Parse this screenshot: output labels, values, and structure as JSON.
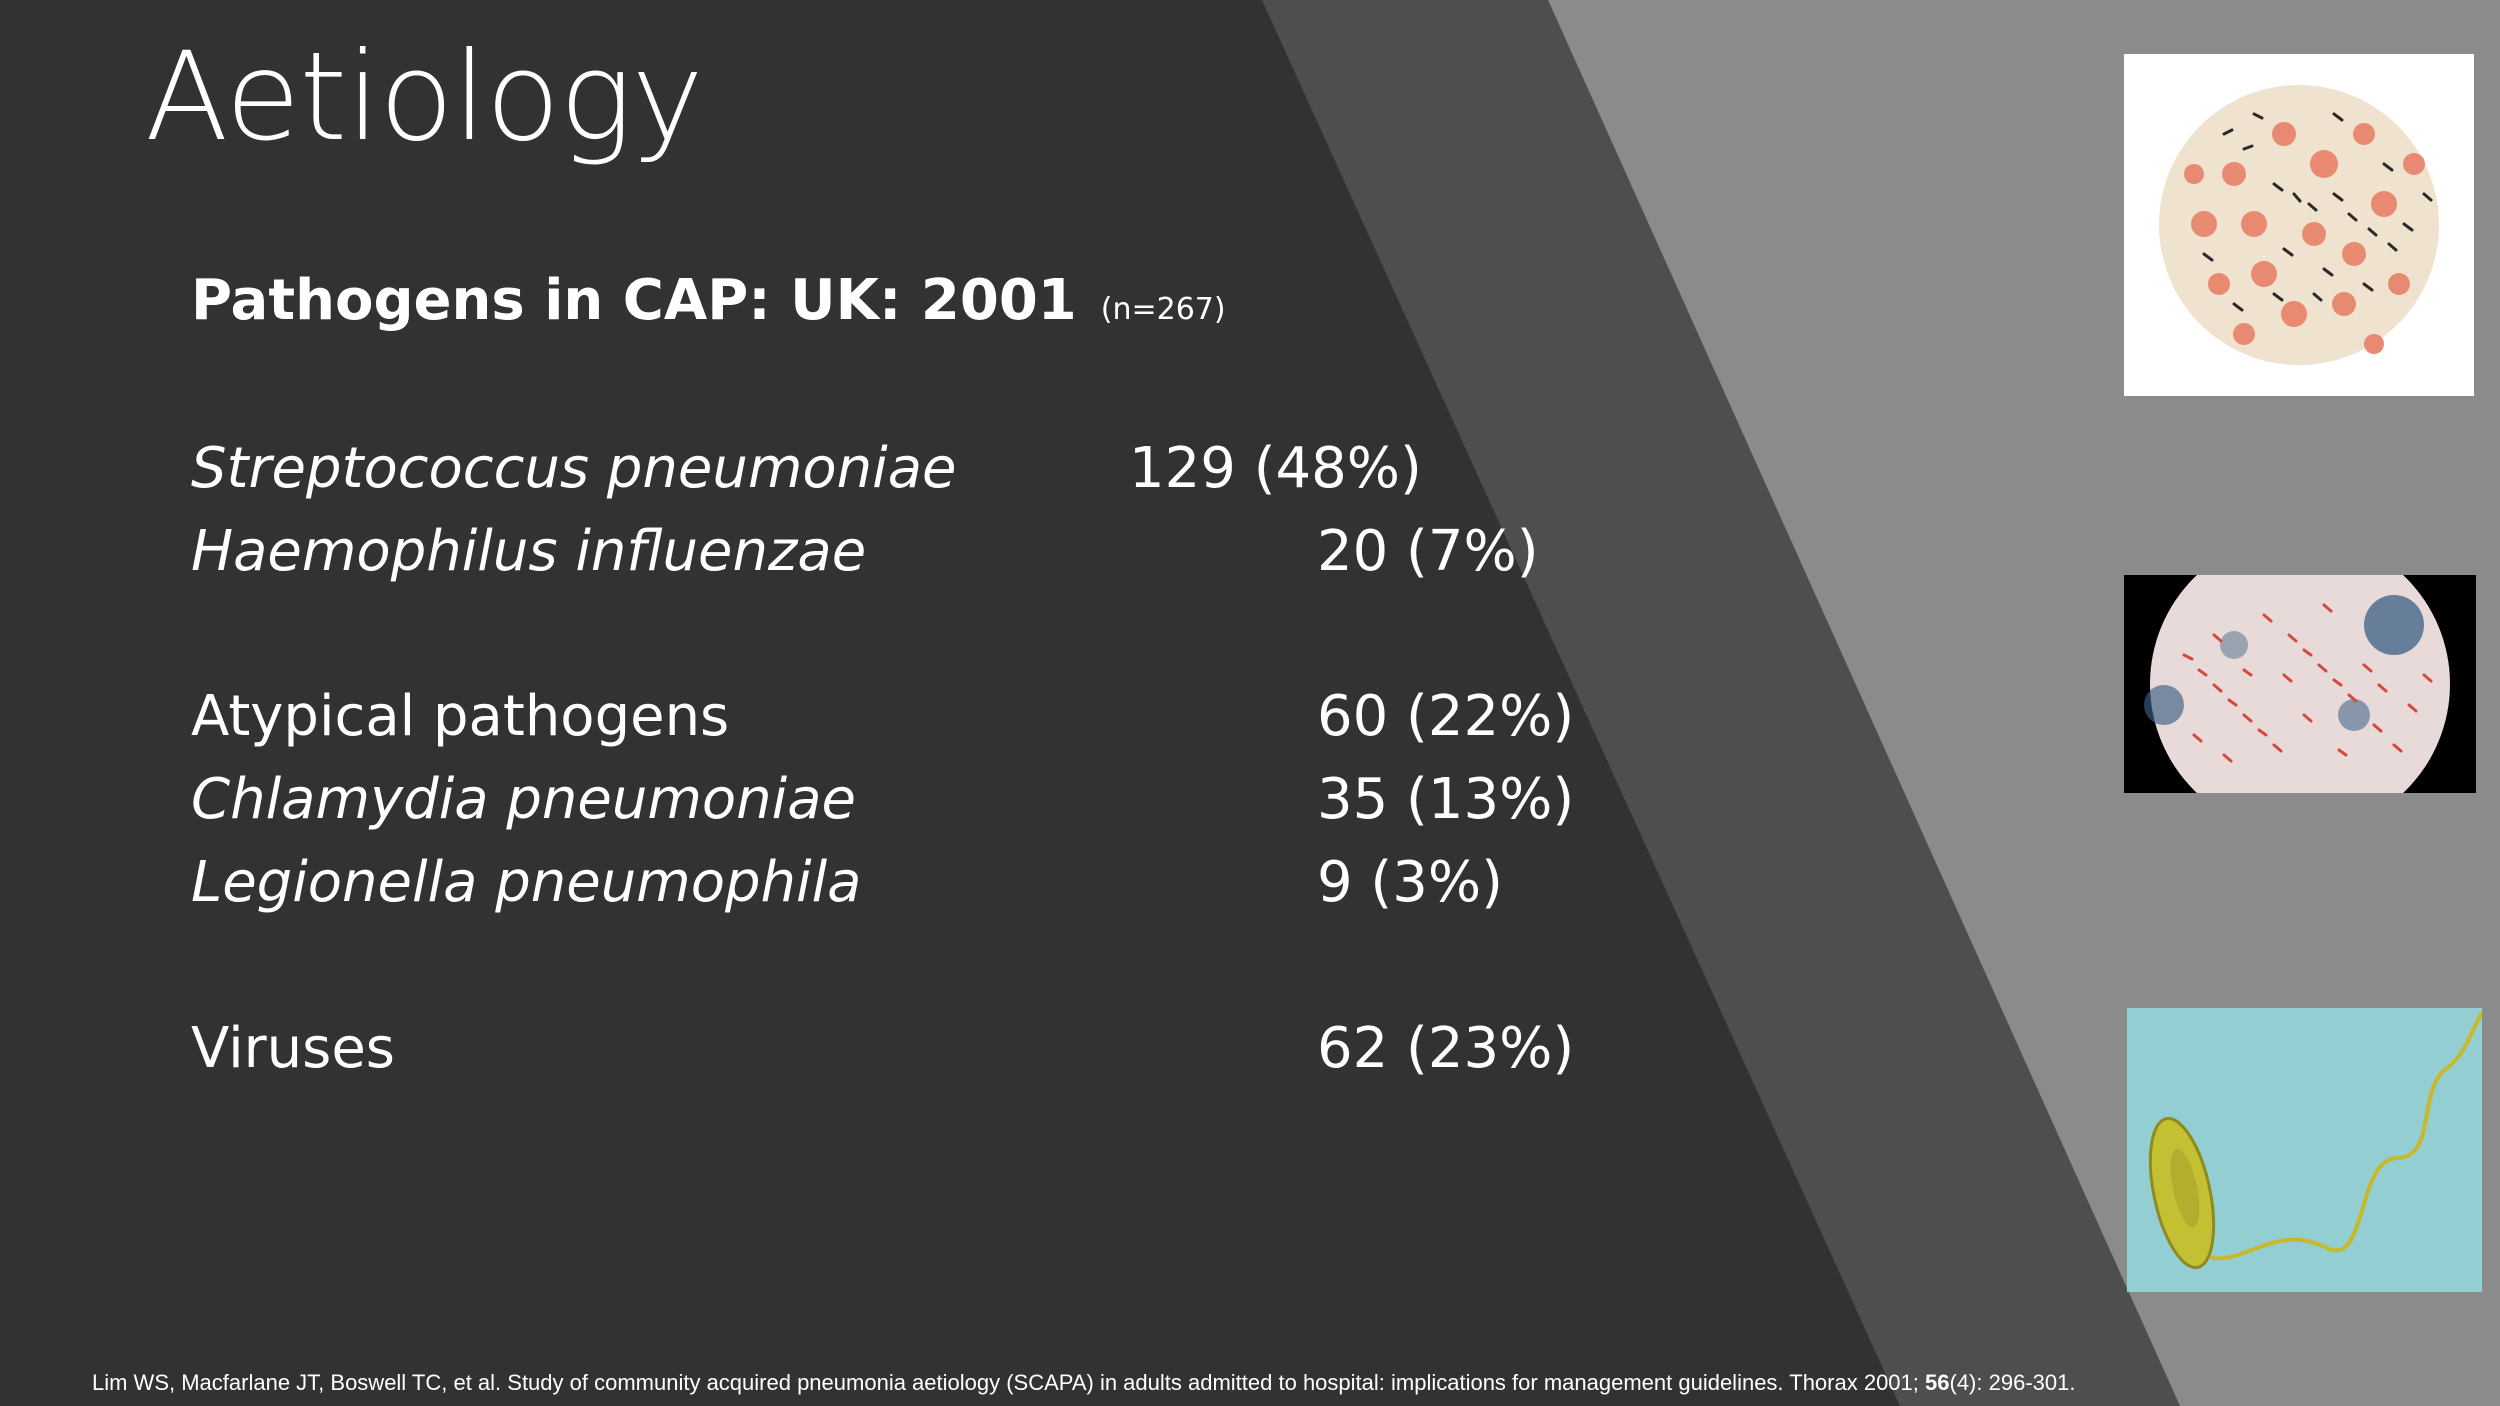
{
  "slide": {
    "title": "Aetiology",
    "subtitle": "Pathogens in CAP: UK: 2001",
    "sample_size": "(n=267)",
    "rows": [
      {
        "label": "Streptococcus pneumoniae",
        "value": "129 (48%)"
      },
      {
        "label": "Haemophilus influenzae",
        "value": "20 (7%)"
      },
      {
        "label": "Atypical pathogens",
        "value": "60 (22%)"
      },
      {
        "label": "Chlamydia pneumoniae",
        "value": "35 (13%)"
      },
      {
        "label": "Legionella pneumophila",
        "value": "9 (3%)"
      },
      {
        "label": "Viruses",
        "value": "62 (23%)"
      }
    ],
    "footnote": {
      "before": "Lim WS, Macfarlane JT, Boswell TC, et al. Study of community acquired pneumonia aetiology (SCAPA) in adults admitted to hospital: implications for management guidelines. Thorax 2001; ",
      "volume": "56",
      "after": "(4): 296-301."
    }
  },
  "images": [
    {
      "name": "micrograph-gram-stain-diplococci-icon"
    },
    {
      "name": "micrograph-gram-negative-rods-icon"
    },
    {
      "name": "electron-micrograph-legionella-icon"
    }
  ],
  "colors": {
    "background": "#323232",
    "band_mid": "#4e4e4e",
    "band_light": "#8b8b8b",
    "text": "#ffffff"
  }
}
